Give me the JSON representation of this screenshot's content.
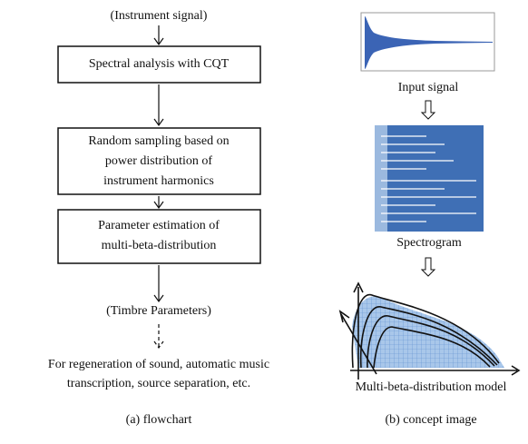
{
  "flowchart": {
    "input": "(Instrument signal)",
    "steps": [
      {
        "lines": [
          "Spectral analysis with CQT"
        ]
      },
      {
        "lines": [
          "Random sampling based on",
          "power distribution of",
          "instrument harmonics"
        ]
      },
      {
        "lines": [
          "Parameter estimation of",
          "multi-beta-distribution"
        ]
      }
    ],
    "output": "(Timbre Parameters)",
    "usage": [
      "For regeneration of sound, automatic music",
      "transcription, source separation, etc."
    ],
    "caption": "(a) flowchart"
  },
  "concept": {
    "images": [
      {
        "label": "Input signal"
      },
      {
        "label": "Spectrogram"
      },
      {
        "label": "Multi-beta-distribution model"
      }
    ],
    "caption": "(b) concept image"
  }
}
